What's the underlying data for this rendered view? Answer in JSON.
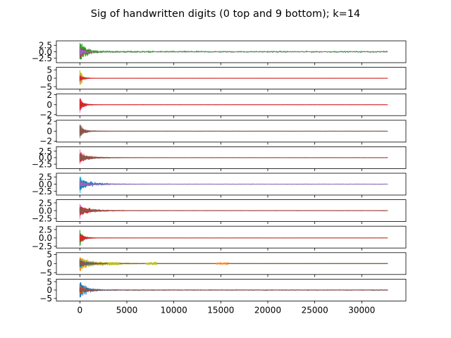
{
  "chart_data": {
    "type": "line",
    "title": "Sig of handwritten digits (0 top and 9 bottom); k=14",
    "xlabel": "",
    "ylabel": "",
    "xlim": [
      -2500,
      34700
    ],
    "x_ticks": [
      0,
      5000,
      10000,
      15000,
      20000,
      25000,
      30000
    ],
    "x_tick_labels": [
      "0",
      "5000",
      "10000",
      "15000",
      "20000",
      "25000",
      "30000"
    ],
    "x_range_data": [
      0,
      32767
    ],
    "shared_x": true,
    "grid": false,
    "legend": "none",
    "panels": [
      {
        "digit": 0,
        "ylim": [
          -4.2,
          4.2
        ],
        "y_ticks": [
          2.5,
          0,
          -2.5
        ],
        "y_tick_labels": [
          "2.5",
          "0.0",
          "−2.5"
        ],
        "series": [
          {
            "color": "#2ca02c",
            "amplitude": 4.0,
            "decay": 700,
            "tail_amplitude": 0.35
          },
          {
            "color": "#d62728",
            "amplitude": 2.5,
            "decay": 500,
            "tail_amplitude": 0.05
          },
          {
            "color": "#9467bd",
            "amplitude": 2.0,
            "decay": 400,
            "tail_amplitude": 0.04
          }
        ]
      },
      {
        "digit": 1,
        "ylim": [
          -6.5,
          6.5
        ],
        "y_ticks": [
          5,
          0,
          -5
        ],
        "y_tick_labels": [
          "5",
          "0",
          "−5"
        ],
        "series": [
          {
            "color": "#bcbd22",
            "amplitude": 6.2,
            "decay": 300,
            "tail_amplitude": 0.02
          },
          {
            "color": "#e377c2",
            "amplitude": 3.0,
            "decay": 250,
            "tail_amplitude": 0.02
          },
          {
            "color": "#d62728",
            "amplitude": 2.0,
            "decay": 400,
            "tail_amplitude": 0.03
          }
        ]
      },
      {
        "digit": 2,
        "ylim": [
          -2.2,
          2.2
        ],
        "y_ticks": [
          2,
          0,
          -2
        ],
        "y_tick_labels": [
          "2",
          "0",
          "−2"
        ],
        "series": [
          {
            "color": "#e377c2",
            "amplitude": 2.0,
            "decay": 250,
            "tail_amplitude": 0.02
          },
          {
            "color": "#d62728",
            "amplitude": 1.5,
            "decay": 400,
            "tail_amplitude": 0.03
          }
        ]
      },
      {
        "digit": 3,
        "ylim": [
          -2.2,
          2.2
        ],
        "y_ticks": [
          2,
          0,
          -2
        ],
        "y_tick_labels": [
          "2",
          "0",
          "−2"
        ],
        "series": [
          {
            "color": "#7f7f7f",
            "amplitude": 1.9,
            "decay": 300,
            "tail_amplitude": 0.02
          },
          {
            "color": "#8c564b",
            "amplitude": 1.2,
            "decay": 600,
            "tail_amplitude": 0.03
          }
        ]
      },
      {
        "digit": 4,
        "ylim": [
          -4.2,
          4.2
        ],
        "y_ticks": [
          2.5,
          0,
          -2.5
        ],
        "y_tick_labels": [
          "2.5",
          "0.0",
          "−2.5"
        ],
        "series": [
          {
            "color": "#e377c2",
            "amplitude": 3.5,
            "decay": 400,
            "tail_amplitude": 0.03
          },
          {
            "color": "#d62728",
            "amplitude": 2.2,
            "decay": 900,
            "tail_amplitude": 0.04
          },
          {
            "color": "#8c564b",
            "amplitude": 1.5,
            "decay": 1500,
            "tail_amplitude": 0.03
          }
        ]
      },
      {
        "digit": 5,
        "ylim": [
          -3.8,
          3.8
        ],
        "y_ticks": [
          2.5,
          0,
          -2.5
        ],
        "y_tick_labels": [
          "2.5",
          "0.0",
          "−2.5"
        ],
        "series": [
          {
            "color": "#17becf",
            "amplitude": 3.4,
            "decay": 400,
            "tail_amplitude": 0.03
          },
          {
            "color": "#1f77b4",
            "amplitude": 2.0,
            "decay": 1500,
            "tail_amplitude": 0.05
          },
          {
            "color": "#9467bd",
            "amplitude": 1.2,
            "decay": 800,
            "tail_amplitude": 0.06
          }
        ]
      },
      {
        "digit": 6,
        "ylim": [
          -3.5,
          3.5
        ],
        "y_ticks": [
          2.5,
          0,
          -2.5
        ],
        "y_tick_labels": [
          "2.5",
          "0.0",
          "−2.5"
        ],
        "series": [
          {
            "color": "#e377c2",
            "amplitude": 3.0,
            "decay": 400,
            "tail_amplitude": 0.03
          },
          {
            "color": "#d62728",
            "amplitude": 1.8,
            "decay": 1500,
            "tail_amplitude": 0.04
          },
          {
            "color": "#8c564b",
            "amplitude": 1.2,
            "decay": 900,
            "tail_amplitude": 0.04
          }
        ]
      },
      {
        "digit": 7,
        "ylim": [
          -3.0,
          3.5
        ],
        "y_ticks": [
          2.5,
          0,
          -2.5
        ],
        "y_tick_labels": [
          "2.5",
          "0.0",
          "−2.5"
        ],
        "series": [
          {
            "color": "#2ca02c",
            "amplitude": 3.2,
            "decay": 300,
            "tail_amplitude": 0.02
          },
          {
            "color": "#d62728",
            "amplitude": 1.6,
            "decay": 500,
            "tail_amplitude": 0.03
          }
        ]
      },
      {
        "digit": 8,
        "ylim": [
          -6.0,
          6.0
        ],
        "y_ticks": [
          5,
          0,
          -5
        ],
        "y_tick_labels": [
          "5",
          "0",
          "−5"
        ],
        "series": [
          {
            "color": "#ff7f0e",
            "amplitude": 5.0,
            "decay": 900,
            "tail_amplitude": 0.05
          },
          {
            "color": "#bcbd22",
            "amplitude": 3.5,
            "decay": 2500,
            "tail_amplitude": 0.05
          },
          {
            "color": "#1f77b4",
            "amplitude": 2.5,
            "decay": 1000,
            "tail_amplitude": 0.04
          },
          {
            "color": "#8c564b",
            "amplitude": 1.5,
            "decay": 1500,
            "tail_amplitude": 0.04
          }
        ],
        "bursts": [
          {
            "x_from": 3000,
            "x_to": 4200,
            "amplitude": 1.2,
            "color": "#bcbd22"
          },
          {
            "x_from": 7000,
            "x_to": 8200,
            "amplitude": 1.0,
            "color": "#bcbd22"
          },
          {
            "x_from": 14500,
            "x_to": 15800,
            "amplitude": 0.6,
            "color": "#ff7f0e"
          }
        ]
      },
      {
        "digit": 9,
        "ylim": [
          -6.5,
          6.5
        ],
        "y_ticks": [
          5,
          0,
          -5
        ],
        "y_tick_labels": [
          "5",
          "0",
          "−5"
        ],
        "series": [
          {
            "color": "#1f77b4",
            "amplitude": 6.0,
            "decay": 700,
            "tail_amplitude": 0.35
          },
          {
            "color": "#ff7f0e",
            "amplitude": 3.0,
            "decay": 500,
            "tail_amplitude": 0.05
          },
          {
            "color": "#d62728",
            "amplitude": 2.0,
            "decay": 800,
            "tail_amplitude": 0.05
          },
          {
            "color": "#8c564b",
            "amplitude": 1.5,
            "decay": 900,
            "tail_amplitude": 0.04
          }
        ]
      }
    ]
  }
}
